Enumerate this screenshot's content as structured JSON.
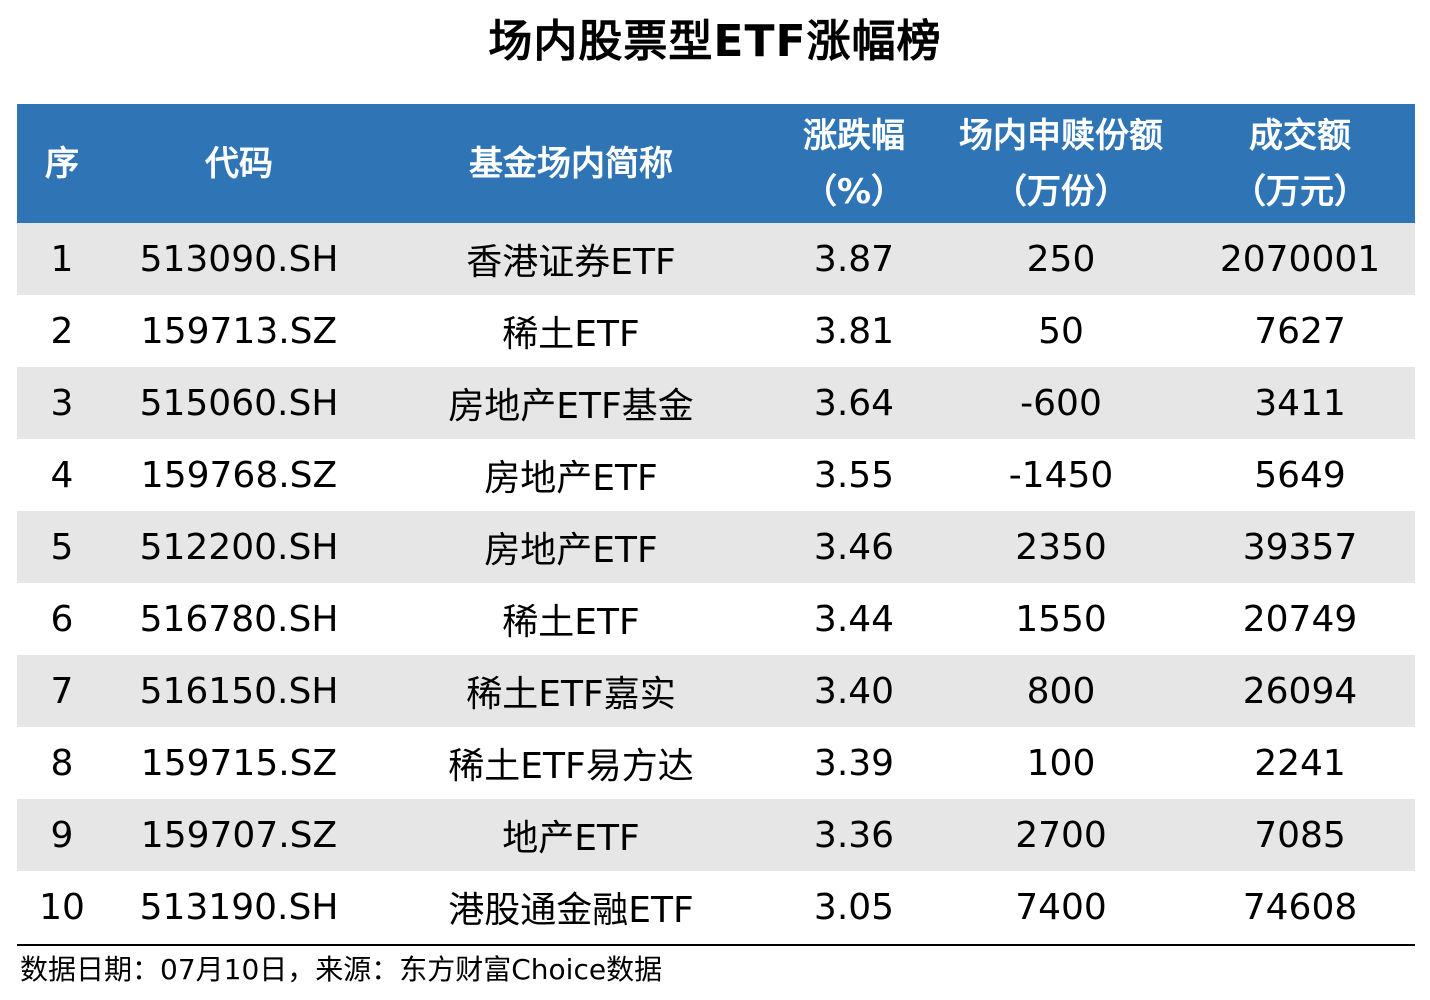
{
  "title": "场内股票型ETF涨幅榜",
  "table": {
    "headers": [
      {
        "line1": "序",
        "line2": ""
      },
      {
        "line1": "代码",
        "line2": ""
      },
      {
        "line1": "基金场内简称",
        "line2": ""
      },
      {
        "line1": "涨跌幅",
        "line2": "（%）"
      },
      {
        "line1": "场内申赎份额",
        "line2": "（万份）"
      },
      {
        "line1": "成交额",
        "line2": "（万元）"
      }
    ],
    "rows": [
      {
        "rank": "1",
        "code": "513090.SH",
        "name": "香港证券ETF",
        "change": "3.87",
        "units": "250",
        "turnover": "2070001"
      },
      {
        "rank": "2",
        "code": "159713.SZ",
        "name": "稀土ETF",
        "change": "3.81",
        "units": "50",
        "turnover": "7627"
      },
      {
        "rank": "3",
        "code": "515060.SH",
        "name": "房地产ETF基金",
        "change": "3.64",
        "units": "-600",
        "turnover": "3411"
      },
      {
        "rank": "4",
        "code": "159768.SZ",
        "name": "房地产ETF",
        "change": "3.55",
        "units": "-1450",
        "turnover": "5649"
      },
      {
        "rank": "5",
        "code": "512200.SH",
        "name": "房地产ETF",
        "change": "3.46",
        "units": "2350",
        "turnover": "39357"
      },
      {
        "rank": "6",
        "code": "516780.SH",
        "name": "稀土ETF",
        "change": "3.44",
        "units": "1550",
        "turnover": "20749"
      },
      {
        "rank": "7",
        "code": "516150.SH",
        "name": "稀土ETF嘉实",
        "change": "3.40",
        "units": "800",
        "turnover": "26094"
      },
      {
        "rank": "8",
        "code": "159715.SZ",
        "name": "稀土ETF易方达",
        "change": "3.39",
        "units": "100",
        "turnover": "2241"
      },
      {
        "rank": "9",
        "code": "159707.SZ",
        "name": "地产ETF",
        "change": "3.36",
        "units": "2700",
        "turnover": "7085"
      },
      {
        "rank": "10",
        "code": "513190.SH",
        "name": "港股通金融ETF",
        "change": "3.05",
        "units": "7400",
        "turnover": "74608"
      }
    ]
  },
  "footnote": "数据日期：07月10日，来源：东方财富Choice数据",
  "colors": {
    "header_bg": "#2f75b5",
    "header_text": "#ffffff",
    "stripe_bg": "#e7e6e6",
    "rule": "#000000"
  }
}
